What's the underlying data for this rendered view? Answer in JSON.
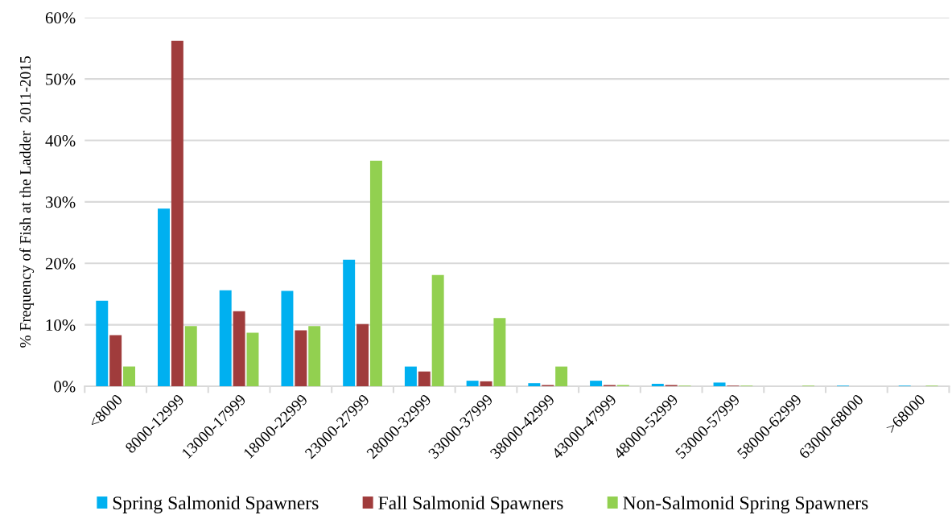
{
  "chart_data": {
    "type": "bar",
    "ylabel": "% Frequency of Fish at the Ladder  2011-2015",
    "categories": [
      "<8000",
      "8000-12999",
      "13000-17999",
      "18000-22999",
      "23000-27999",
      "28000-32999",
      "33000-37999",
      "38000-42999",
      "43000-47999",
      "48000-52999",
      "53000-57999",
      "58000-62999",
      "63000-68000",
      ">68000"
    ],
    "series": [
      {
        "name": "Spring Salmonid Spawners",
        "color": "#00b0f0",
        "values": [
          13.9,
          28.9,
          15.6,
          15.5,
          20.6,
          3.2,
          0.9,
          0.5,
          0.9,
          0.4,
          0.6,
          0,
          0.1,
          0.1
        ]
      },
      {
        "name": "Fall Salmonid Spawners",
        "color": "#a03c3c",
        "values": [
          8.3,
          56.2,
          12.2,
          9.1,
          10.1,
          2.4,
          0.8,
          0.2,
          0.2,
          0.2,
          0.1,
          0,
          0,
          0
        ]
      },
      {
        "name": "Non-Salmonid Spring Spawners",
        "color": "#92d050",
        "values": [
          3.2,
          9.8,
          8.7,
          9.8,
          36.7,
          18.1,
          11.1,
          3.2,
          0.2,
          0.1,
          0.1,
          0.1,
          0,
          0.1
        ]
      }
    ],
    "ylim": [
      0,
      60
    ],
    "yticks": [
      {
        "value": 0,
        "label": "0%"
      },
      {
        "value": 10,
        "label": "10%"
      },
      {
        "value": 20,
        "label": "20%"
      },
      {
        "value": 30,
        "label": "30%"
      },
      {
        "value": 40,
        "label": "40%"
      },
      {
        "value": 50,
        "label": "50%"
      },
      {
        "value": 60,
        "label": "60%"
      }
    ],
    "grid": "y",
    "legend": "bottom"
  }
}
